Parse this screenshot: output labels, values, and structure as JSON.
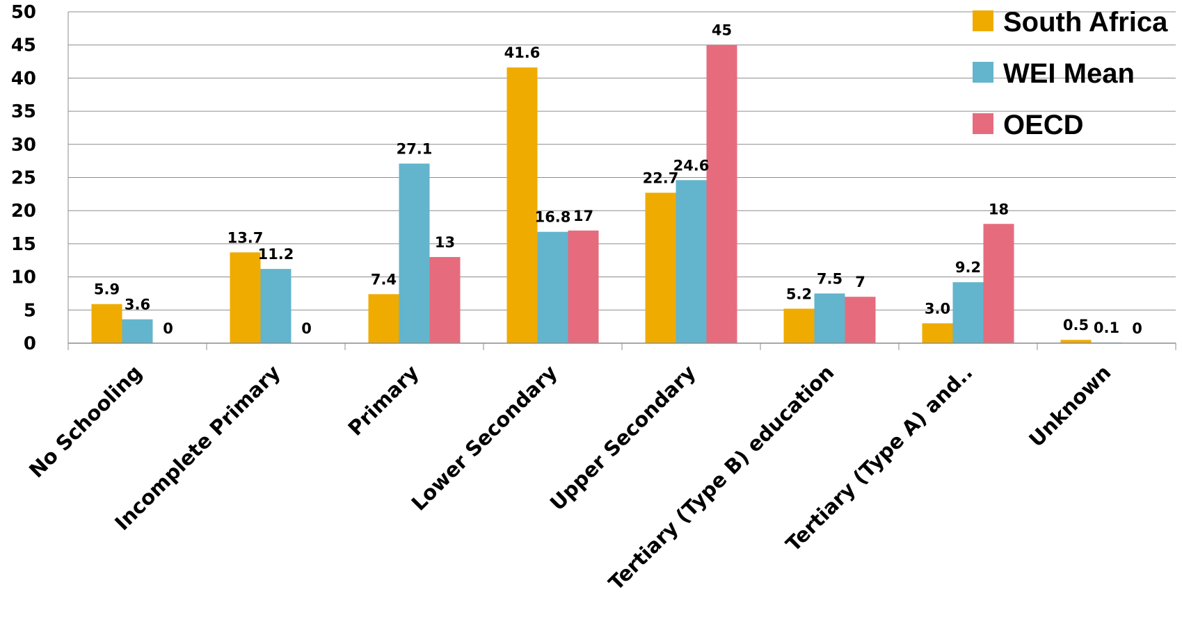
{
  "chart_data": {
    "type": "bar",
    "title": "",
    "xlabel": "",
    "ylabel": "",
    "ylim": [
      0,
      50
    ],
    "yticks": [
      0,
      5,
      10,
      15,
      20,
      25,
      30,
      35,
      40,
      45,
      50
    ],
    "grid": true,
    "legend_position": "top-right",
    "categories": [
      "No Schooling",
      "Incomplete Primary",
      "Primary",
      "Lower Secondary",
      "Upper Secondary",
      "Tertiary (Type B) education",
      "Tertiary (Type A) and..",
      "Unknown"
    ],
    "series": [
      {
        "name": "South Africa",
        "color": "#F0AB00",
        "values": [
          5.9,
          13.7,
          7.4,
          41.6,
          22.7,
          5.2,
          3.0,
          0.5
        ],
        "labels": [
          "5.9",
          "13.7",
          "7.4",
          "41.6",
          "22.7",
          "5.2",
          "3.0",
          "0.5"
        ]
      },
      {
        "name": "WEI Mean",
        "color": "#62B5CC",
        "values": [
          3.6,
          11.2,
          27.1,
          16.8,
          24.6,
          7.5,
          9.2,
          0.1
        ],
        "labels": [
          "3.6",
          "11.2",
          "27.1",
          "16.8",
          "24.6",
          "7.5",
          "9.2",
          "0.1"
        ]
      },
      {
        "name": "OECD",
        "color": "#E66C7D",
        "values": [
          0,
          0,
          13,
          17,
          45,
          7,
          18,
          0
        ],
        "labels": [
          "0",
          "0",
          "13",
          "17",
          "45",
          "7",
          "18",
          "0"
        ]
      }
    ]
  }
}
